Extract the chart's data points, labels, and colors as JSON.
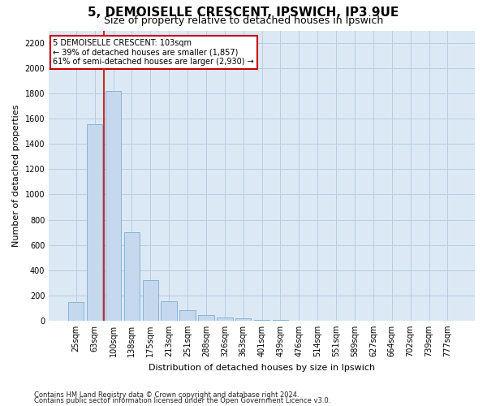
{
  "title_line1": "5, DEMOISELLE CRESCENT, IPSWICH, IP3 9UE",
  "title_line2": "Size of property relative to detached houses in Ipswich",
  "xlabel": "Distribution of detached houses by size in Ipswich",
  "ylabel": "Number of detached properties",
  "categories": [
    "25sqm",
    "63sqm",
    "100sqm",
    "138sqm",
    "175sqm",
    "213sqm",
    "251sqm",
    "288sqm",
    "326sqm",
    "363sqm",
    "401sqm",
    "439sqm",
    "476sqm",
    "514sqm",
    "551sqm",
    "589sqm",
    "627sqm",
    "664sqm",
    "702sqm",
    "739sqm",
    "777sqm"
  ],
  "values": [
    150,
    1555,
    1820,
    700,
    320,
    155,
    80,
    42,
    27,
    20,
    8,
    3,
    1,
    0,
    0,
    0,
    0,
    0,
    0,
    0,
    0
  ],
  "bar_color": "#c5d8ee",
  "bar_edge_color": "#7aadd4",
  "vline_x_index": 1.5,
  "annotation_text_line1": "5 DEMOISELLE CRESCENT: 103sqm",
  "annotation_text_line2": "← 39% of detached houses are smaller (1,857)",
  "annotation_text_line3": "61% of semi-detached houses are larger (2,930) →",
  "annotation_box_facecolor": "#ffffff",
  "annotation_box_edgecolor": "#cc0000",
  "vline_color": "#cc0000",
  "ylim": [
    0,
    2300
  ],
  "yticks": [
    0,
    200,
    400,
    600,
    800,
    1000,
    1200,
    1400,
    1600,
    1800,
    2000,
    2200
  ],
  "footer_line1": "Contains HM Land Registry data © Crown copyright and database right 2024.",
  "footer_line2": "Contains public sector information licensed under the Open Government Licence v3.0.",
  "bg_color": "#ffffff",
  "ax_bg_color": "#dce9f5",
  "grid_color": "#b8cde0",
  "title_fontsize": 11,
  "subtitle_fontsize": 9,
  "axis_label_fontsize": 8,
  "tick_fontsize": 7,
  "annotation_fontsize": 7,
  "footer_fontsize": 6
}
